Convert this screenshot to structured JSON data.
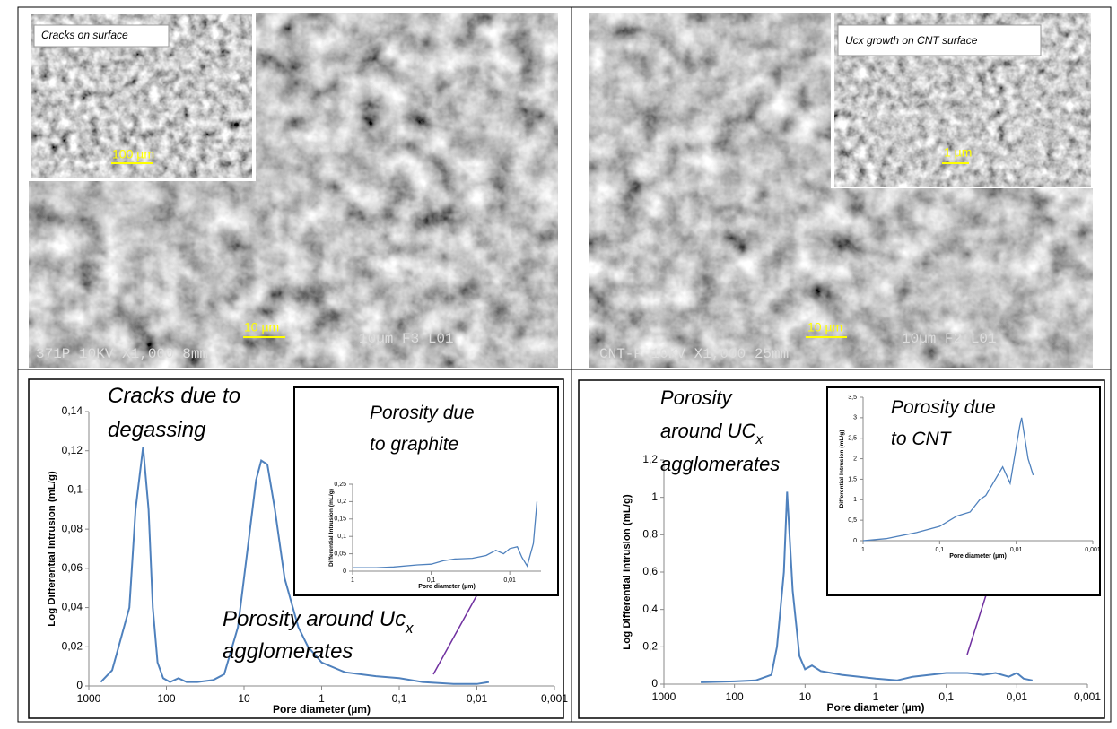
{
  "images": [
    {
      "inset_label": "Cracks on surface",
      "inset_scale": "100 µm",
      "scale": "10 µm",
      "footer_left": "371P 10KV X1,000 8mm",
      "footer_right": "10µm F3 L01"
    },
    {
      "inset_label": "Ucx growth on CNT surface",
      "inset_scale": "1 µm",
      "scale": "10 µm",
      "footer_left": "CNT-P 10KV X1,000 25mm",
      "footer_right": "10µm F2 L01"
    }
  ],
  "chart_data": [
    {
      "type": "line",
      "log_x": true,
      "color": "#4f81bd",
      "ylabel": "Log Differential Intrusion (mL/g)",
      "xlabel": "Pore diameter (µm)",
      "annotations": [
        "Cracks due to",
        "degassing",
        "Porosity around Uc",
        "x",
        "agglomerates"
      ],
      "xlim": [
        1000,
        0.001
      ],
      "xticks": [
        1000,
        100,
        10,
        1,
        {
          "value": 0.1,
          "label": "0,1"
        },
        {
          "value": 0.01,
          "label": "0,01"
        },
        {
          "value": 0.001,
          "label": "0,001"
        }
      ],
      "ylim": [
        0,
        0.14
      ],
      "yticks": [
        0,
        {
          "value": 0.02,
          "label": "0,02"
        },
        {
          "value": 0.04,
          "label": "0,04"
        },
        {
          "value": 0.06,
          "label": "0,06"
        },
        {
          "value": 0.08,
          "label": "0,08"
        },
        {
          "value": 0.1,
          "label": "0,1"
        },
        {
          "value": 0.12,
          "label": "0,12"
        },
        {
          "value": 0.14,
          "label": "0,14"
        }
      ],
      "x": [
        700,
        500,
        300,
        250,
        200,
        170,
        150,
        130,
        110,
        90,
        70,
        55,
        40,
        25,
        18,
        12,
        9,
        7,
        6,
        5,
        4,
        3,
        2,
        1.5,
        1,
        0.5,
        0.2,
        0.1,
        0.05,
        0.02,
        0.01,
        0.007
      ],
      "values": [
        0.002,
        0.008,
        0.04,
        0.09,
        0.122,
        0.09,
        0.04,
        0.012,
        0.004,
        0.002,
        0.004,
        0.002,
        0.002,
        0.003,
        0.006,
        0.03,
        0.07,
        0.105,
        0.115,
        0.113,
        0.09,
        0.055,
        0.03,
        0.02,
        0.012,
        0.007,
        0.005,
        0.004,
        0.002,
        0.001,
        0.001,
        0.002
      ]
    },
    {
      "type": "line",
      "log_x": true,
      "color": "#4f81bd",
      "ylabel": "Differential Intrusion (mL/g)",
      "xlabel": "Pore diameter (µm)",
      "annotations": [
        "Porosity due",
        "to graphite"
      ],
      "xlim": [
        1,
        0.004
      ],
      "xticks": [
        1,
        {
          "value": 0.1,
          "label": "0,1"
        },
        {
          "value": 0.01,
          "label": "0,01"
        }
      ],
      "ylim": [
        0,
        0.25
      ],
      "yticks": [
        0,
        {
          "value": 0.05,
          "label": "0,05"
        },
        {
          "value": 0.1,
          "label": "0,1"
        },
        {
          "value": 0.15,
          "label": "0,15"
        },
        {
          "value": 0.2,
          "label": "0,2"
        },
        {
          "value": 0.25,
          "label": "0,25"
        }
      ],
      "x": [
        1,
        0.5,
        0.3,
        0.15,
        0.1,
        0.07,
        0.05,
        0.03,
        0.02,
        0.015,
        0.012,
        0.01,
        0.008,
        0.007,
        0.006,
        0.005,
        0.0045
      ],
      "values": [
        0.01,
        0.01,
        0.012,
        0.018,
        0.02,
        0.03,
        0.035,
        0.037,
        0.045,
        0.06,
        0.05,
        0.065,
        0.07,
        0.04,
        0.015,
        0.08,
        0.2
      ]
    },
    {
      "type": "line",
      "log_x": true,
      "color": "#4f81bd",
      "ylabel": "Log Differential Intrusion (mL/g)",
      "xlabel": "Pore diameter (µm)",
      "annotations": [
        "Porosity",
        "around UC",
        "x",
        "agglomerates"
      ],
      "xlim": [
        1000,
        0.001
      ],
      "xticks": [
        1000,
        100,
        10,
        1,
        {
          "value": 0.1,
          "label": "0,1"
        },
        {
          "value": 0.01,
          "label": "0,01"
        },
        {
          "value": 0.001,
          "label": "0,001"
        }
      ],
      "ylim": [
        0,
        1.2
      ],
      "yticks": [
        0,
        {
          "value": 0.2,
          "label": "0,2"
        },
        {
          "value": 0.4,
          "label": "0,4"
        },
        {
          "value": 0.6,
          "label": "0,6"
        },
        {
          "value": 0.8,
          "label": "0,8"
        },
        1,
        {
          "value": 1.2,
          "label": "1,2"
        }
      ],
      "x": [
        300,
        100,
        50,
        30,
        25,
        20,
        18,
        15,
        12,
        10,
        8,
        6,
        3,
        1,
        0.5,
        0.3,
        0.1,
        0.05,
        0.03,
        0.02,
        0.013,
        0.01,
        0.008,
        0.006
      ],
      "values": [
        0.01,
        0.015,
        0.02,
        0.05,
        0.2,
        0.6,
        1.03,
        0.5,
        0.15,
        0.08,
        0.1,
        0.07,
        0.05,
        0.03,
        0.02,
        0.04,
        0.06,
        0.06,
        0.05,
        0.06,
        0.04,
        0.06,
        0.03,
        0.02
      ]
    },
    {
      "type": "line",
      "log_x": true,
      "color": "#4f81bd",
      "ylabel": "Differential Intrusion (mL/g)",
      "xlabel": "Pore diameter (µm)",
      "annotations": [
        "Porosity due",
        "to CNT"
      ],
      "xlim": [
        1,
        0.001
      ],
      "xticks": [
        1,
        {
          "value": 0.1,
          "label": "0,1"
        },
        {
          "value": 0.01,
          "label": "0,01"
        },
        {
          "value": 0.001,
          "label": "0,001"
        }
      ],
      "ylim": [
        0,
        3.5
      ],
      "yticks": [
        0,
        {
          "value": 0.5,
          "label": "0,5"
        },
        1,
        {
          "value": 1.5,
          "label": "1,5"
        },
        2,
        {
          "value": 2.5,
          "label": "2,5"
        },
        3,
        {
          "value": 3.5,
          "label": "3,5"
        }
      ],
      "x": [
        1,
        0.5,
        0.2,
        0.1,
        0.06,
        0.04,
        0.03,
        0.025,
        0.015,
        0.012,
        0.009,
        0.0085,
        0.007,
        0.006
      ],
      "values": [
        0,
        0.05,
        0.2,
        0.35,
        0.6,
        0.7,
        1,
        1.1,
        1.8,
        1.4,
        2.8,
        3,
        2,
        1.6
      ]
    }
  ]
}
